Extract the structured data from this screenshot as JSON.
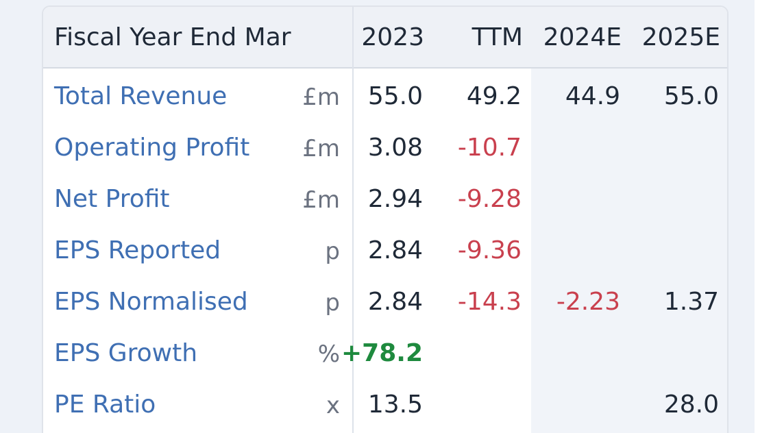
{
  "table": {
    "header": {
      "label": "Fiscal Year End Mar",
      "columns": [
        "2023",
        "TTM",
        "2024E",
        "2025E"
      ]
    },
    "rows": [
      {
        "label": "Total Revenue",
        "unit": "£m",
        "values": [
          "55.0",
          "49.2",
          "44.9",
          "55.0"
        ]
      },
      {
        "label": "Operating Profit",
        "unit": "£m",
        "values": [
          "3.08",
          "-10.7",
          "",
          ""
        ]
      },
      {
        "label": "Net Profit",
        "unit": "£m",
        "values": [
          "2.94",
          "-9.28",
          "",
          ""
        ]
      },
      {
        "label": "EPS Reported",
        "unit": "p",
        "values": [
          "2.84",
          "-9.36",
          "",
          ""
        ]
      },
      {
        "label": "EPS Normalised",
        "unit": "p",
        "values": [
          "2.84",
          "-14.3",
          "-2.23",
          "1.37"
        ]
      },
      {
        "label": "EPS Growth",
        "unit": "%",
        "values": [
          "+78.2",
          "",
          "",
          ""
        ]
      },
      {
        "label": "PE Ratio",
        "unit": "x",
        "values": [
          "13.5",
          "",
          "",
          "28.0"
        ]
      }
    ]
  },
  "colors": {
    "label_link": "#3f6fb3",
    "negative": "#c9404e",
    "positive": "#1e8a3e",
    "text": "#1f2937"
  }
}
